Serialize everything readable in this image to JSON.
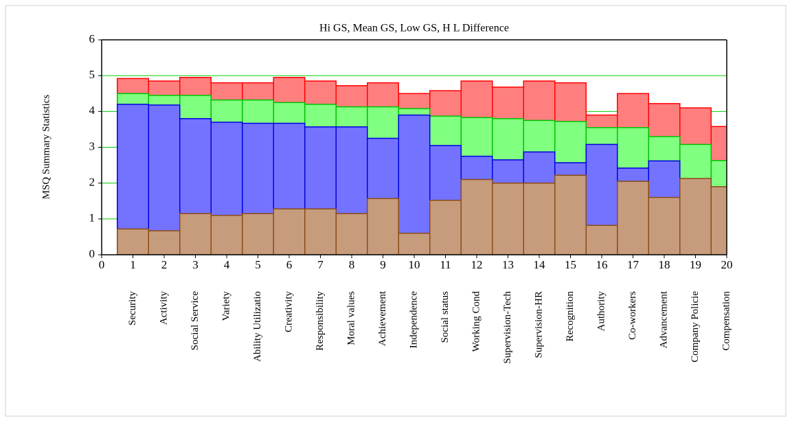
{
  "chart_data": {
    "type": "bar",
    "title": "Hi GS, Mean GS, Low GS, H L Difference",
    "y_label": "MSQ Summary Statistics",
    "categories": [
      "Security",
      "Activity",
      "Social Service",
      "Variety",
      "Ability Utilizatio",
      "Creativity",
      "Responsibility",
      "Moral values",
      "Achievement",
      "Independence",
      "Social status",
      "Working Cond",
      "Supervision-Tech",
      "Supervision-HR",
      "Recognition",
      "Authority",
      "Co-workers",
      "Advancement",
      "Company Policie",
      "Compensation"
    ],
    "x": [
      1,
      2,
      3,
      4,
      5,
      6,
      7,
      8,
      9,
      10,
      11,
      12,
      13,
      14,
      15,
      16,
      17,
      18,
      19,
      20
    ],
    "series": [
      {
        "name": "Hi GS",
        "color": "#ff7f7f",
        "values": [
          4.92,
          4.85,
          4.95,
          4.8,
          4.8,
          4.95,
          4.85,
          4.72,
          4.8,
          4.5,
          4.58,
          4.85,
          4.68,
          4.85,
          4.8,
          3.9,
          4.5,
          4.22,
          4.1,
          3.58
        ]
      },
      {
        "name": "Mean GS",
        "color": "#80ff80",
        "values": [
          4.5,
          4.45,
          4.45,
          4.32,
          4.32,
          4.25,
          4.2,
          4.13,
          4.13,
          4.08,
          3.87,
          3.83,
          3.8,
          3.75,
          3.72,
          3.55,
          3.55,
          3.3,
          3.08,
          2.63
        ]
      },
      {
        "name": "Low GS",
        "color": "#7373ff",
        "values": [
          4.2,
          4.18,
          3.8,
          3.7,
          3.67,
          3.67,
          3.57,
          3.57,
          3.25,
          3.9,
          3.05,
          2.75,
          2.65,
          2.87,
          2.57,
          3.08,
          2.42,
          2.62,
          1.97,
          1.68
        ]
      },
      {
        "name": "H L Difference",
        "color": "#c69c7d",
        "values": [
          0.72,
          0.67,
          1.15,
          1.1,
          1.15,
          1.28,
          1.28,
          1.15,
          1.57,
          0.6,
          1.52,
          2.1,
          2.0,
          2.0,
          2.22,
          0.82,
          2.05,
          1.6,
          2.13,
          1.9
        ]
      }
    ],
    "xlim": [
      0,
      20
    ],
    "xticks": [
      0,
      1,
      2,
      3,
      4,
      5,
      6,
      7,
      8,
      9,
      10,
      11,
      12,
      13,
      14,
      15,
      16,
      17,
      18,
      19,
      20
    ],
    "ylim": [
      0,
      6
    ],
    "yticks": [
      0,
      1,
      2,
      3,
      4,
      5,
      6
    ],
    "grid": true
  }
}
